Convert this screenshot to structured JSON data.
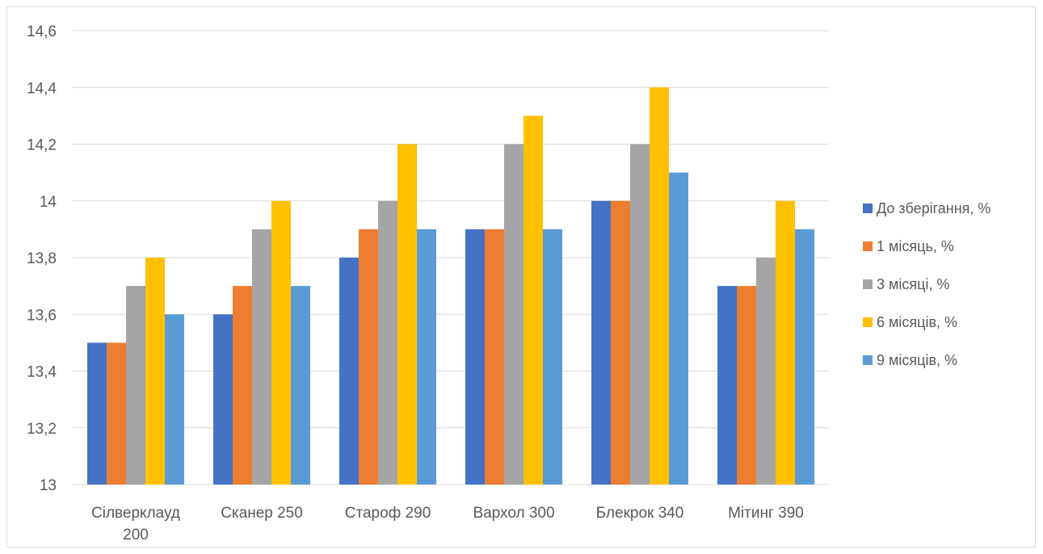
{
  "chart_data": {
    "type": "bar",
    "categories": [
      [
        "Сілверклауд",
        "200"
      ],
      [
        "Сканер 250"
      ],
      [
        "Староф 290"
      ],
      [
        "Вархол 300"
      ],
      [
        "Блекрок 340"
      ],
      [
        "Мітинг 390"
      ]
    ],
    "series": [
      {
        "name": "До зберігання, %",
        "color": "#4472c4",
        "values": [
          13.5,
          13.6,
          13.8,
          13.9,
          14.0,
          13.7
        ]
      },
      {
        "name": "1 місяць, %",
        "color": "#ed7d31",
        "values": [
          13.5,
          13.7,
          13.9,
          13.9,
          14.0,
          13.7
        ]
      },
      {
        "name": "3 місяці, %",
        "color": "#a5a5a5",
        "values": [
          13.7,
          13.9,
          14.0,
          14.2,
          14.2,
          13.8
        ]
      },
      {
        "name": "6 місяців, %",
        "color": "#ffc000",
        "values": [
          13.8,
          14.0,
          14.2,
          14.3,
          14.4,
          14.0
        ]
      },
      {
        "name": "9 місяців, %",
        "color": "#5b9bd5",
        "values": [
          13.6,
          13.7,
          13.9,
          13.9,
          14.1,
          13.9
        ]
      }
    ],
    "yticks": [
      "13",
      "13,2",
      "13,4",
      "13,6",
      "13,8",
      "14",
      "14,2",
      "14,4",
      "14,6"
    ],
    "ylim": [
      13,
      14.6
    ],
    "grid": true,
    "legend_position": "right"
  }
}
